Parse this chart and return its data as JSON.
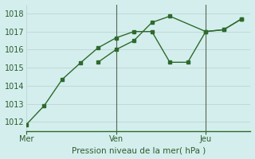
{
  "background_color": "#d4eeed",
  "grid_color": "#c0d8d8",
  "line_color": "#2d6a2d",
  "marker_color": "#2d6a2d",
  "xlabel_text": "Pression niveau de la mer( hPa )",
  "ylim": [
    1011.5,
    1018.5
  ],
  "yticks": [
    1012,
    1013,
    1014,
    1015,
    1016,
    1017,
    1018
  ],
  "xlim": [
    0,
    10
  ],
  "vlines_x": [
    4.0,
    8.0
  ],
  "xtick_labels": [
    "Mer",
    "Ven",
    "Jeu"
  ],
  "xtick_positions": [
    0.0,
    4.0,
    8.0
  ],
  "line1_x": [
    0.0,
    0.8,
    1.6,
    2.4,
    3.2,
    4.0,
    4.8,
    5.6,
    6.4,
    7.2,
    8.0,
    8.8,
    9.6
  ],
  "line1_y": [
    1011.85,
    1012.9,
    1014.35,
    1015.25,
    1016.1,
    1016.65,
    1017.0,
    1017.0,
    1015.3,
    1015.3,
    1017.0,
    1017.1,
    1017.7
  ],
  "line2_x": [
    3.2,
    4.0,
    4.8,
    5.6,
    6.4,
    8.0,
    8.8,
    9.6
  ],
  "line2_y": [
    1015.3,
    1016.0,
    1016.5,
    1017.5,
    1017.85,
    1017.0,
    1017.1,
    1017.7
  ]
}
